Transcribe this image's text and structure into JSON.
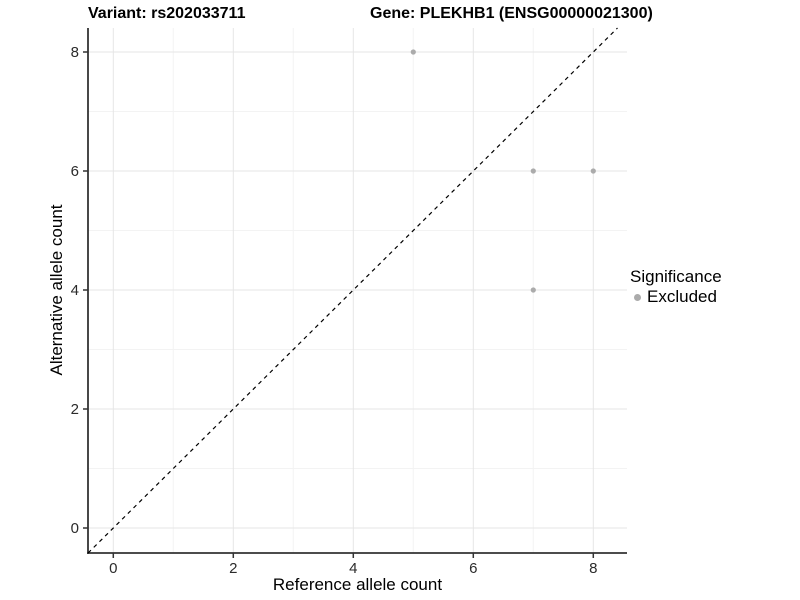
{
  "figure": {
    "title_left": "Variant: rs202033711",
    "title_right": "Gene: PLEKHB1 (ENSG00000021300)"
  },
  "legend": {
    "title": "Significance",
    "items": [
      {
        "label": "Excluded",
        "color": "#ababab"
      }
    ]
  },
  "chart_data": {
    "type": "scatter",
    "title_left": "Variant: rs202033711",
    "title_right": "Gene: PLEKHB1 (ENSG00000021300)",
    "xlabel": "Reference allele count",
    "ylabel": "Alternative allele count",
    "x_ticks": [
      0,
      2,
      4,
      6,
      8
    ],
    "y_ticks": [
      0,
      2,
      4,
      6,
      8
    ],
    "x_minor": [
      1,
      3,
      5,
      7
    ],
    "y_minor": [
      1,
      3,
      5,
      7
    ],
    "xlim": [
      -0.42,
      8.57
    ],
    "ylim": [
      -0.42,
      8.4
    ],
    "grid": true,
    "legend_position": "right",
    "series": [
      {
        "name": "Excluded",
        "color": "#ababab",
        "points": [
          [
            5,
            8
          ],
          [
            7,
            6
          ],
          [
            8,
            6
          ],
          [
            7,
            4
          ]
        ]
      }
    ],
    "reference_line": {
      "type": "identity",
      "line_style": "dashed",
      "color": "#000000"
    }
  },
  "style": {
    "grid_major": "#e6e6e6",
    "grid_minor": "#f3f3f3",
    "axis_color": "#333333",
    "tick_label_color": "#2b2b2b",
    "point_radius": 2.6,
    "tick_font_size": 15
  }
}
